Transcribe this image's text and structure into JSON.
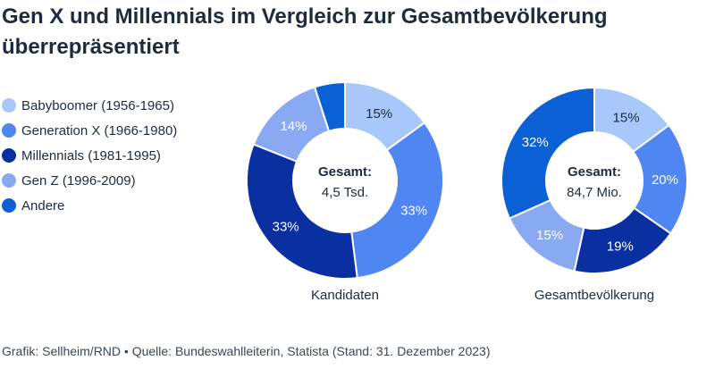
{
  "title": "Gen X und Millennials im Vergleich zur Gesamtbevölkerung überrepräsentiert",
  "legend": [
    {
      "label": "Babyboomer (1956-1965)",
      "color": "#a8c8fb"
    },
    {
      "label": "Generation X (1966-1980)",
      "color": "#4f86f1"
    },
    {
      "label": "Millennials (1981-1995)",
      "color": "#0a2fa0"
    },
    {
      "label": "Gen Z (1996-2009)",
      "color": "#8aa9f3"
    },
    {
      "label": "Andere",
      "color": "#0c60d6"
    }
  ],
  "chart_data": [
    {
      "type": "pie",
      "variant": "donut",
      "caption": "Kandidaten",
      "center_label": "Gesamt:",
      "center_value": "4,5 Tsd.",
      "categories": [
        "Babyboomer (1956-1965)",
        "Generation X (1966-1980)",
        "Millennials (1981-1995)",
        "Gen Z (1996-2009)",
        "Andere"
      ],
      "values": [
        15,
        33,
        33,
        14,
        5
      ],
      "labels": [
        "15%",
        "33%",
        "33%",
        "14%",
        ""
      ],
      "label_colors": [
        "#1f2b3c",
        "#ffffff",
        "#ffffff",
        "#ffffff",
        ""
      ]
    },
    {
      "type": "pie",
      "variant": "donut",
      "caption": "Gesamtbevölkerung",
      "center_label": "Gesamt:",
      "center_value": "84,7 Mio.",
      "categories": [
        "Babyboomer (1956-1965)",
        "Generation X (1966-1980)",
        "Millennials (1981-1995)",
        "Gen Z (1996-2009)",
        "Andere"
      ],
      "values": [
        15,
        20,
        19,
        15,
        32
      ],
      "labels": [
        "15%",
        "20%",
        "19%",
        "15%",
        "32%"
      ],
      "label_colors": [
        "#1f2b3c",
        "#ffffff",
        "#ffffff",
        "#ffffff",
        "#ffffff"
      ]
    }
  ],
  "footer": "Grafik: Sellheim/RND • Quelle: Bundeswahlleiterin, Statista (Stand: 31. Dezember 2023)"
}
